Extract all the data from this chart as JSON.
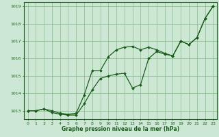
{
  "title": "Graphe pression niveau de la mer (hPa)",
  "hours": [
    0,
    1,
    2,
    3,
    4,
    5,
    6,
    7,
    8,
    9,
    10,
    11,
    12,
    13,
    14,
    15,
    16,
    17,
    18,
    19,
    20,
    21,
    22,
    23
  ],
  "line_upper": [
    1013.0,
    1013.0,
    1013.1,
    1013.0,
    1012.85,
    1012.8,
    1012.85,
    1013.9,
    1015.3,
    1015.3,
    1016.1,
    1016.5,
    1016.65,
    1016.7,
    1016.5,
    1016.65,
    1016.5,
    1016.3,
    1016.15,
    1017.0,
    1016.8,
    1017.2,
    1018.3,
    1019.0
  ],
  "line_lower": [
    1013.0,
    1013.0,
    1013.1,
    1012.9,
    1012.8,
    1012.75,
    1012.75,
    1013.4,
    1014.2,
    1014.85,
    1015.0,
    1015.1,
    1015.15,
    1014.3,
    1014.5,
    1016.0,
    1016.4,
    1016.25,
    1016.15,
    1017.0,
    1016.8,
    1017.2,
    1018.3,
    1019.0
  ],
  "ylim": [
    1012.5,
    1019.25
  ],
  "yticks": [
    1013,
    1014,
    1015,
    1016,
    1017,
    1018,
    1019
  ],
  "bg_color": "#cce8d4",
  "grid_color": "#88bb88",
  "line_color": "#1a5c1a",
  "text_color": "#1a5c1a",
  "title_fontsize": 5.5,
  "tick_fontsize": 4.5
}
